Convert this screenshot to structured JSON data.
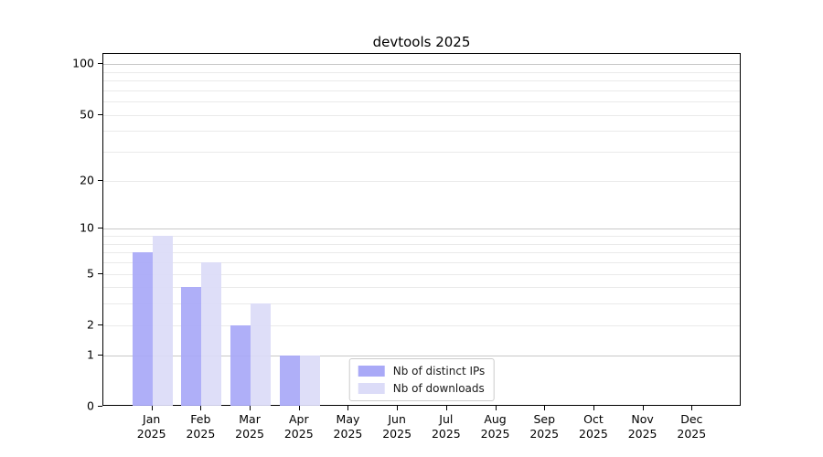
{
  "chart_data": {
    "type": "bar",
    "title": "devtools 2025",
    "categories": [
      "Jan",
      "Feb",
      "Mar",
      "Apr",
      "May",
      "Jun",
      "Jul",
      "Aug",
      "Sep",
      "Oct",
      "Nov",
      "Dec"
    ],
    "category_year": "2025",
    "series": [
      {
        "name": "Nb of distinct IPs",
        "color": "#a9a9f7",
        "values": [
          7,
          4,
          2,
          1,
          0,
          0,
          0,
          0,
          0,
          0,
          0,
          0
        ]
      },
      {
        "name": "Nb of downloads",
        "color": "#dcdcf8",
        "values": [
          9,
          6,
          3,
          1,
          0,
          0,
          0,
          0,
          0,
          0,
          0,
          0
        ]
      }
    ],
    "xlabel": "",
    "ylabel": "",
    "y_axis": {
      "scale": "log1p",
      "major_ticks": [
        0,
        1,
        2,
        5,
        10,
        20,
        50,
        100
      ],
      "minor_gridlines": [
        3,
        4,
        6,
        7,
        8,
        9,
        30,
        40,
        60,
        70,
        80,
        90
      ],
      "ylim": [
        0,
        115
      ]
    },
    "grid": {
      "decade_lines": [
        1,
        10,
        100
      ],
      "decade_line_color": "#c8c8c8",
      "minor_line_color": "#eaeaea"
    },
    "legend": {
      "position": "lower center",
      "entries": [
        "Nb of distinct IPs",
        "Nb of downloads"
      ]
    },
    "background_color": "#ffffff",
    "axis_color": "#000000"
  }
}
